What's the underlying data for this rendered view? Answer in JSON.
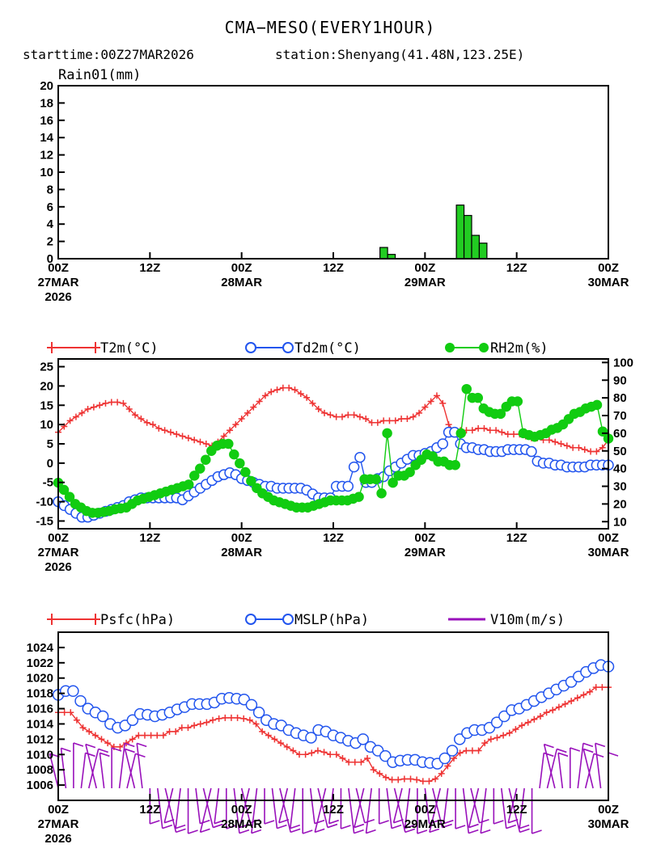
{
  "header": {
    "title": "CMA−MESO(EVERY1HOUR)",
    "subtitle_start": "starttime:00Z27MAR2026",
    "subtitle_station": "station:Shenyang(41.48N,123.25E)"
  },
  "x_axis": {
    "ticks": [
      {
        "hour": 0,
        "line1": "00Z",
        "line2": "27MAR",
        "line3": "2026"
      },
      {
        "hour": 12,
        "line1": "12Z",
        "line2": "",
        "line3": ""
      },
      {
        "hour": 24,
        "line1": "00Z",
        "line2": "28MAR",
        "line3": ""
      },
      {
        "hour": 36,
        "line1": "12Z",
        "line2": "",
        "line3": ""
      },
      {
        "hour": 48,
        "line1": "00Z",
        "line2": "29MAR",
        "line3": ""
      },
      {
        "hour": 60,
        "line1": "12Z",
        "line2": "",
        "line3": ""
      },
      {
        "hour": 72,
        "line1": "00Z",
        "line2": "30MAR",
        "line3": ""
      }
    ]
  },
  "colors": {
    "rain": "#22cc22",
    "t2m": "#ee3333",
    "td2m": "#2255ee",
    "rh2m": "#11cc11",
    "psfc": "#ee3333",
    "mslp": "#2255ee",
    "wind": "#9911bb"
  },
  "chart_data": [
    {
      "type": "bar",
      "title": "Rain01(mm)",
      "x_unit": "hours since 00Z27MAR2026",
      "ylim": [
        0,
        20
      ],
      "yticks": [
        0,
        2,
        4,
        6,
        8,
        10,
        12,
        14,
        16,
        18,
        20
      ],
      "grid": false,
      "x": [
        42,
        43,
        52,
        53,
        54,
        55
      ],
      "values": [
        1.3,
        0.5,
        6.2,
        5.0,
        2.7,
        1.8
      ]
    },
    {
      "type": "line",
      "legend_placement": "top",
      "ylim_left": [
        -17,
        27
      ],
      "yticks_left": [
        -15,
        -10,
        -5,
        0,
        5,
        10,
        15,
        20,
        25
      ],
      "ylim_right": [
        6,
        102
      ],
      "yticks_right": [
        10,
        20,
        30,
        40,
        50,
        60,
        70,
        80,
        90,
        100
      ],
      "grid": false,
      "series": [
        {
          "name": "T2m(°C)",
          "axis": "left",
          "values": [
            8,
            9.5,
            11,
            12,
            13,
            14,
            14.5,
            15,
            15.5,
            15.8,
            15.8,
            15.5,
            14,
            12.5,
            11.5,
            10.5,
            10,
            9,
            8.5,
            8,
            7.5,
            7,
            6.5,
            6,
            5.5,
            5,
            4.5,
            5.5,
            7,
            8.5,
            10,
            11.5,
            13,
            14.5,
            16,
            17.5,
            18.5,
            19,
            19.5,
            19.5,
            19,
            18,
            17,
            15.5,
            14,
            13,
            12.5,
            12,
            12,
            12.5,
            12.5,
            12,
            11.5,
            10.5,
            10.5,
            11,
            11,
            11,
            11.5,
            11.5,
            12,
            13,
            14.5,
            16,
            17.5,
            15.5,
            10,
            8,
            8.5,
            8.5,
            8.5,
            9,
            9,
            8.5,
            8.5,
            8,
            7.5,
            7.5,
            7.5,
            7,
            6.5,
            6.5,
            6,
            6,
            5.5,
            5,
            4.5,
            4,
            4,
            3.5,
            3,
            3,
            4,
            6
          ]
        },
        {
          "name": "Td2m(°C)",
          "axis": "left",
          "values": [
            -10,
            -11,
            -12,
            -13,
            -14,
            -14,
            -13.5,
            -13,
            -12.5,
            -12,
            -11.5,
            -11,
            -10,
            -9.5,
            -9,
            -9,
            -9,
            -9,
            -9,
            -9,
            -9,
            -9.5,
            -8.5,
            -7.5,
            -6.5,
            -5.5,
            -4.5,
            -3.5,
            -3,
            -2.5,
            -3,
            -4,
            -4.5,
            -5,
            -5.5,
            -6,
            -6,
            -6.5,
            -6.5,
            -6.5,
            -6.5,
            -6.5,
            -7,
            -8,
            -9,
            -9,
            -9,
            -6,
            -6,
            -6,
            -1,
            1.5,
            -5,
            -5,
            -4,
            -3.5,
            -2,
            -1,
            0,
            1,
            2,
            2,
            2.5,
            3,
            4,
            5,
            8,
            8,
            5,
            4,
            4,
            3.5,
            3.5,
            3,
            3,
            3,
            3.5,
            3.5,
            3.5,
            3.5,
            3,
            0.5,
            0,
            0,
            -0.5,
            -0.5,
            -1,
            -1,
            -1,
            -1,
            -0.5,
            -0.5,
            -0.5,
            -0.5
          ]
        },
        {
          "name": "RH2m(%)",
          "axis": "right",
          "values": [
            32,
            28,
            24,
            20,
            18,
            16,
            15,
            15,
            15.5,
            16,
            17,
            17.5,
            18,
            20,
            22,
            23,
            24,
            25,
            26,
            27,
            28,
            29,
            30,
            31,
            36,
            40,
            45,
            50,
            53,
            54,
            54,
            48,
            43,
            38,
            33,
            29,
            26,
            24,
            22,
            21,
            20,
            19,
            18,
            18,
            18,
            19,
            20,
            21,
            22,
            22,
            22,
            22,
            23,
            24,
            34,
            34,
            34,
            26,
            60,
            32,
            36,
            36,
            38,
            42,
            45,
            48,
            47,
            44,
            44,
            42,
            42,
            60,
            85,
            80,
            80,
            74,
            72,
            71,
            71,
            75,
            78,
            78,
            60,
            59,
            58,
            59,
            60,
            62,
            63,
            65,
            68,
            71,
            72,
            74,
            75,
            76,
            61,
            57
          ]
        }
      ]
    },
    {
      "type": "line",
      "legend_placement": "top",
      "ylim": [
        1004,
        1026
      ],
      "yticks": [
        1006,
        1008,
        1010,
        1012,
        1014,
        1016,
        1018,
        1020,
        1022,
        1024
      ],
      "grid": false,
      "series": [
        {
          "name": "Psfc(hPa)",
          "values": [
            1015.5,
            1015.5,
            1015.5,
            1014.5,
            1013.5,
            1013,
            1012.5,
            1012,
            1011.5,
            1011,
            1011,
            1011.5,
            1012,
            1012.5,
            1012.5,
            1012.5,
            1012.5,
            1012.5,
            1013,
            1013,
            1013.5,
            1013.5,
            1013.8,
            1014,
            1014.2,
            1014.5,
            1014.7,
            1014.8,
            1014.8,
            1014.8,
            1014.7,
            1014.5,
            1014,
            1013,
            1012.5,
            1012,
            1011.5,
            1011,
            1010.5,
            1010,
            1010,
            1010.2,
            1010.5,
            1010.3,
            1010,
            1010,
            1009.5,
            1009,
            1009,
            1009,
            1009.5,
            1008,
            1007.5,
            1007,
            1006.7,
            1006.7,
            1006.8,
            1006.8,
            1006.7,
            1006.5,
            1006.5,
            1006.8,
            1007.5,
            1008.5,
            1009.5,
            1010.2,
            1010.5,
            1010.5,
            1010.5,
            1011.5,
            1012,
            1012.2,
            1012.5,
            1012.8,
            1013.3,
            1013.8,
            1014.2,
            1014.6,
            1015,
            1015.5,
            1015.8,
            1016.2,
            1016.6,
            1017,
            1017.4,
            1017.8,
            1018.2,
            1018.8,
            1018.8,
            1018.8
          ]
        },
        {
          "name": "MSLP(hPa)",
          "values": [
            1017.8,
            1018.3,
            1018.3,
            1017,
            1016,
            1015.5,
            1015,
            1014,
            1013.5,
            1013.8,
            1014.5,
            1015.3,
            1015.2,
            1015,
            1015.2,
            1015.5,
            1015.9,
            1016.2,
            1016.6,
            1016.6,
            1016.6,
            1016.8,
            1017.3,
            1017.4,
            1017.3,
            1017.2,
            1016.5,
            1015.5,
            1014.5,
            1014,
            1013.8,
            1013.2,
            1012.8,
            1012.5,
            1012.2,
            1013.2,
            1013,
            1012.5,
            1012.2,
            1011.8,
            1011.5,
            1012,
            1011,
            1010.5,
            1009.8,
            1009,
            1009.2,
            1009.3,
            1009.3,
            1009,
            1008.9,
            1008.8,
            1009.5,
            1010.5,
            1012,
            1012.8,
            1013.2,
            1013.2,
            1013.5,
            1014.2,
            1015,
            1015.8,
            1016,
            1016.5,
            1017,
            1017.5,
            1018,
            1018.5,
            1019,
            1019.5,
            1020.2,
            1020.8,
            1021.3,
            1021.7,
            1021.5
          ]
        },
        {
          "name": "V10m(m/s)",
          "values": []
        }
      ]
    }
  ]
}
